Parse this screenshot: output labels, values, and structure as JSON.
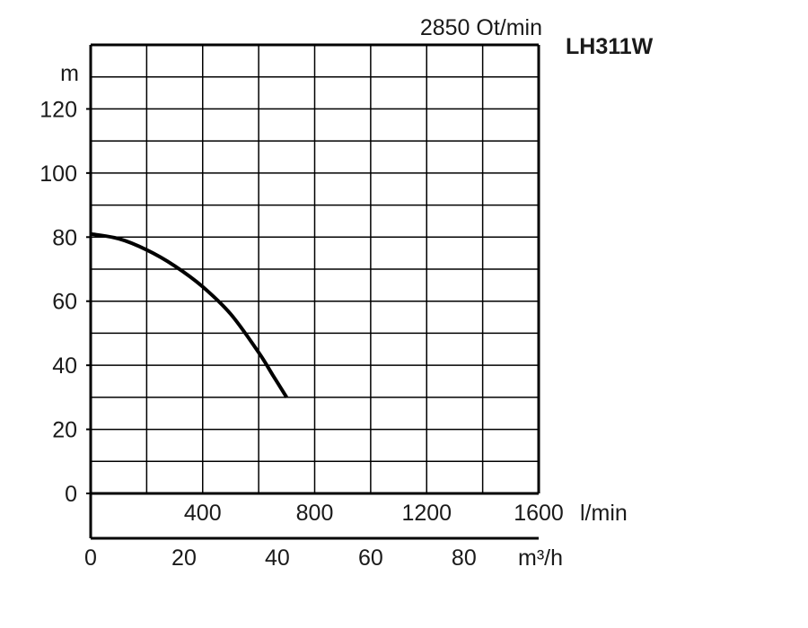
{
  "chart_data": {
    "type": "line",
    "speed_label": "2850 Ot/min",
    "model": "LH311W",
    "y_unit": "m",
    "x_unit_lmin": "l/min",
    "x_unit_m3h": "m³/h",
    "ylim": [
      0,
      140
    ],
    "xlim_lmin": [
      0,
      1600
    ],
    "xlim_m3h": [
      0,
      96
    ],
    "y_ticks": [
      0,
      20,
      40,
      60,
      80,
      100,
      120
    ],
    "x_ticks_lmin": [
      400,
      800,
      1200,
      1600
    ],
    "x_ticks_m3h": [
      0,
      20,
      40,
      60,
      80
    ],
    "grid": true,
    "series": [
      {
        "x_lmin": [
          0,
          100,
          200,
          300,
          400,
          500,
          600,
          650,
          700
        ],
        "y": [
          81,
          79.5,
          76,
          71,
          64.5,
          56,
          44,
          37,
          30
        ]
      }
    ]
  }
}
